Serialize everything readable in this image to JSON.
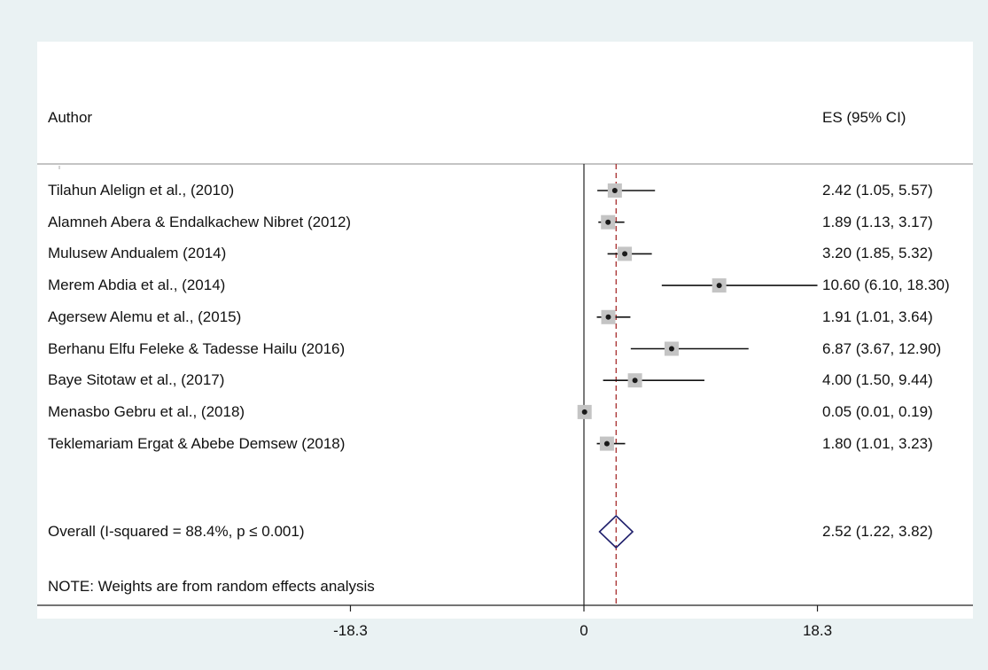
{
  "header": {
    "author_label": "Author",
    "es_label": "ES (95% CI)"
  },
  "note": "NOTE: Weights are from random effects analysis",
  "colors": {
    "background": "#eaf2f3",
    "panel": "#ffffff",
    "diamond": "#1f1f6b",
    "overall_line": "#a01c1c",
    "weight_box": "#c4c4c4"
  },
  "chart_data": {
    "type": "forest",
    "title": "",
    "xlabel": "",
    "ylabel": "",
    "xlim": [
      -27.5,
      27.5
    ],
    "x_ticks": [
      {
        "value": -18.3,
        "label": "-18.3"
      },
      {
        "value": 0,
        "label": "0"
      },
      {
        "value": 18.3,
        "label": "18.3"
      }
    ],
    "null_line": 0,
    "overall_line": 2.52,
    "studies": [
      {
        "author": "Tilahun Alelign et al., (2010)",
        "es": 2.42,
        "lo": 1.05,
        "hi": 5.57,
        "es_ci": "2.42 (1.05, 5.57)"
      },
      {
        "author": "Alamneh Abera & Endalkachew Nibret (2012)",
        "es": 1.89,
        "lo": 1.13,
        "hi": 3.17,
        "es_ci": "1.89 (1.13, 3.17)"
      },
      {
        "author": "Mulusew Andualem (2014)",
        "es": 3.2,
        "lo": 1.85,
        "hi": 5.32,
        "es_ci": "3.20 (1.85, 5.32)"
      },
      {
        "author": "Merem Abdia et al.,  (2014)",
        "es": 10.6,
        "lo": 6.1,
        "hi": 18.3,
        "es_ci": "10.60 (6.10, 18.30)"
      },
      {
        "author": "Agersew Alemu  et al., (2015)",
        "es": 1.91,
        "lo": 1.01,
        "hi": 3.64,
        "es_ci": "1.91 (1.01, 3.64)"
      },
      {
        "author": "Berhanu Elfu Feleke & Tadesse Hailu  (2016)",
        "es": 6.87,
        "lo": 3.67,
        "hi": 12.9,
        "es_ci": "6.87 (3.67, 12.90)"
      },
      {
        "author": "Baye Sitotaw et al., (2017)",
        "es": 4.0,
        "lo": 1.5,
        "hi": 9.44,
        "es_ci": "4.00 (1.50, 9.44)"
      },
      {
        "author": "Menasbo Gebru et al., (2018)",
        "es": 0.05,
        "lo": 0.01,
        "hi": 0.19,
        "es_ci": "0.05 (0.01, 0.19)"
      },
      {
        "author": "Teklemariam Ergat & Abebe Demsew (2018)",
        "es": 1.8,
        "lo": 1.01,
        "hi": 3.23,
        "es_ci": "1.80 (1.01, 3.23)"
      }
    ],
    "overall": {
      "label": "Overall  (I-squared = 88.4%, p ≤ 0.001)",
      "es": 2.52,
      "lo": 1.22,
      "hi": 3.82,
      "es_ci": "2.52 (1.22, 3.82)"
    }
  }
}
